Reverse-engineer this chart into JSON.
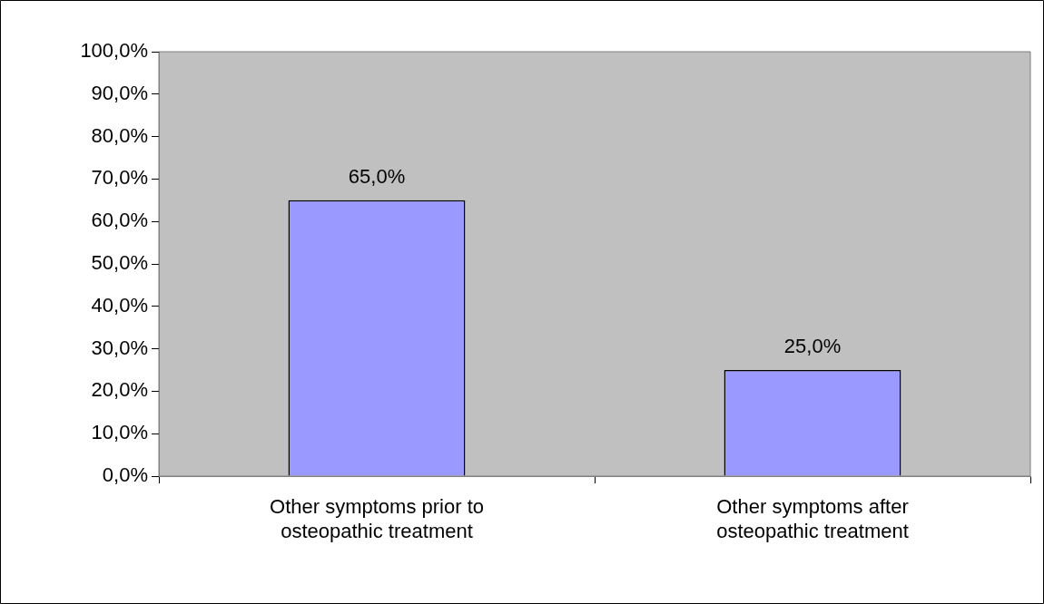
{
  "chart_data": {
    "type": "bar",
    "categories": [
      "Other symptoms prior to osteopathic treatment",
      "Other symptoms after osteopathic treatment"
    ],
    "values": [
      65,
      25
    ],
    "color": "#9999ff",
    "value_labels": [
      "65,0%",
      "25,0%"
    ],
    "ylim": [
      0,
      100
    ],
    "yticks": [
      {
        "value": 0,
        "label": "0,0%"
      },
      {
        "value": 10,
        "label": "10,0%"
      },
      {
        "value": 20,
        "label": "20,0%"
      },
      {
        "value": 30,
        "label": "30,0%"
      },
      {
        "value": 40,
        "label": "40,0%"
      },
      {
        "value": 50,
        "label": "50,0%"
      },
      {
        "value": 60,
        "label": "60,0%"
      },
      {
        "value": 70,
        "label": "70,0%"
      },
      {
        "value": 80,
        "label": "80,0%"
      },
      {
        "value": 90,
        "label": "90,0%"
      },
      {
        "value": 100,
        "label": "100,0%"
      }
    ],
    "grid": false,
    "legend": false
  }
}
